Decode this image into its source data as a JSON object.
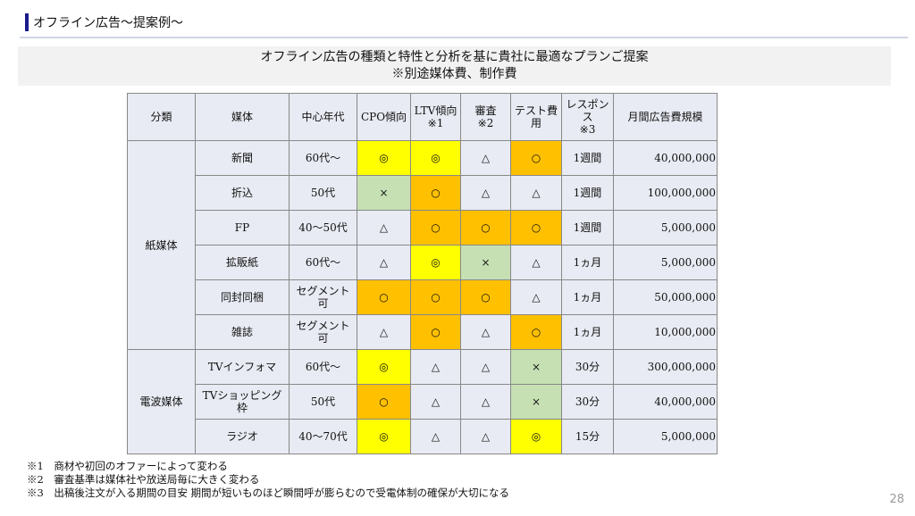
{
  "header": {
    "title": "オフライン広告～提案例～"
  },
  "banner": {
    "line1": "オフライン広告の種類と特性と分析を基に貴社に最適なプランご提案",
    "line2": "※別途媒体費、制作費"
  },
  "table": {
    "headers": [
      "分類",
      "媒体",
      "中心年代",
      "CPO傾向",
      "LTV傾向\n※1",
      "審査\n※2",
      "テスト費用",
      "レスポンス\n※3",
      "月間広告費規模"
    ],
    "groups": [
      {
        "name": "紙媒体",
        "rows": [
          {
            "cells": [
              "新聞",
              "60代～",
              "◎",
              "◎",
              "△",
              "○",
              "1週間",
              "40,000,000"
            ],
            "colors": [
              "",
              "",
              "y",
              "y",
              "",
              "o",
              "",
              ""
            ]
          },
          {
            "cells": [
              "折込",
              "50代",
              "×",
              "○",
              "△",
              "△",
              "1週間",
              "100,000,000"
            ],
            "colors": [
              "",
              "",
              "g",
              "o",
              "",
              "",
              "",
              ""
            ]
          },
          {
            "cells": [
              "FP",
              "40～50代",
              "△",
              "○",
              "○",
              "○",
              "1週間",
              "5,000,000"
            ],
            "colors": [
              "",
              "",
              "",
              "o",
              "o",
              "o",
              "",
              ""
            ]
          },
          {
            "cells": [
              "拡販紙",
              "60代～",
              "△",
              "◎",
              "×",
              "△",
              "1ヵ月",
              "5,000,000"
            ],
            "colors": [
              "",
              "",
              "",
              "y",
              "g",
              "",
              "",
              ""
            ]
          },
          {
            "cells": [
              "同封同梱",
              "セグメント可",
              "○",
              "○",
              "○",
              "△",
              "1ヵ月",
              "50,000,000"
            ],
            "colors": [
              "",
              "",
              "o",
              "o",
              "o",
              "",
              "",
              ""
            ]
          },
          {
            "cells": [
              "雑誌",
              "セグメント可",
              "△",
              "○",
              "△",
              "○",
              "1ヵ月",
              "10,000,000"
            ],
            "colors": [
              "",
              "",
              "",
              "o",
              "",
              "o",
              "",
              ""
            ]
          }
        ]
      },
      {
        "name": "電波媒体",
        "rows": [
          {
            "cells": [
              "TVインフォマ",
              "60代～",
              "◎",
              "△",
              "△",
              "×",
              "30分",
              "300,000,000"
            ],
            "colors": [
              "",
              "",
              "y",
              "",
              "",
              "g",
              "",
              ""
            ]
          },
          {
            "cells": [
              "TVショッピング枠",
              "50代",
              "○",
              "△",
              "△",
              "×",
              "30分",
              "40,000,000"
            ],
            "colors": [
              "",
              "",
              "o",
              "",
              "",
              "g",
              "",
              ""
            ]
          },
          {
            "cells": [
              "ラジオ",
              "40～70代",
              "◎",
              "△",
              "△",
              "◎",
              "15分",
              "5,000,000"
            ],
            "colors": [
              "",
              "",
              "y",
              "",
              "",
              "y",
              "",
              ""
            ]
          }
        ]
      }
    ]
  },
  "notes": [
    "※1　商材や初回のオファーによって変わる",
    "※2　審査基準は媒体社や放送局毎に大きく変わる",
    "※3　出稿後注文が入る期間の目安 期間が短いものほど瞬間呼が膨らむので受電体制の確保が大切になる"
  ],
  "page_number": "28",
  "colors": {
    "yellow": "#ffff00",
    "orange": "#ffc000",
    "green": "#c6e0b4"
  }
}
